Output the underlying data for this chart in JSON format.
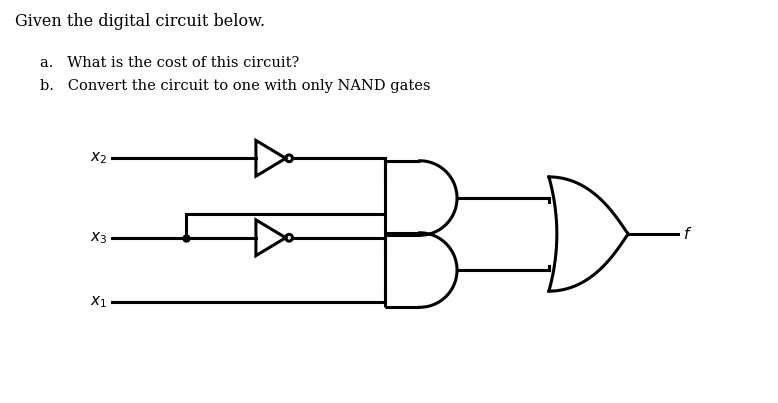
{
  "title_text": "Given the digital circuit below.",
  "question_a": "a.   What is the cost of this circuit?",
  "question_b": "b.   Convert the circuit to one with only NAND gates",
  "bg_color": "#ffffff",
  "line_color": "#000000",
  "x2_label": "$x_2$",
  "x3_label": "$x_3$",
  "x1_label": "$x_1$",
  "f_label": "$f$",
  "figw": 7.78,
  "figh": 4.03,
  "dpi": 100
}
